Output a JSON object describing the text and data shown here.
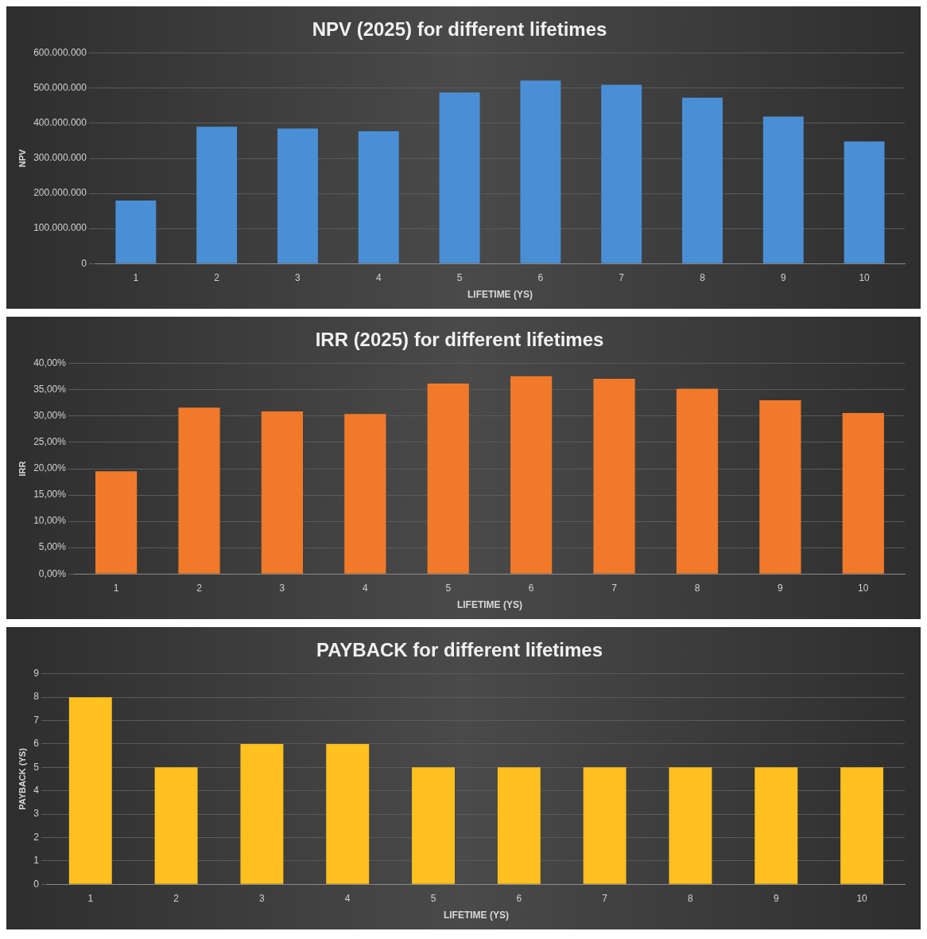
{
  "chart_data": [
    {
      "type": "bar",
      "title": "NPV (2025) for different lifetimes",
      "xlabel": "LIFETIME (YS)",
      "ylabel": "NPV",
      "categories": [
        "1",
        "2",
        "3",
        "4",
        "5",
        "6",
        "7",
        "8",
        "9",
        "10"
      ],
      "series": [
        {
          "color": "#4a8fd6",
          "values": [
            180000000,
            390000000,
            385000000,
            377000000,
            488000000,
            522000000,
            510000000,
            473000000,
            419000000,
            348000000
          ]
        }
      ],
      "ylim": [
        0,
        600000000
      ],
      "yticks": [
        {
          "value": 0,
          "label": "0"
        },
        {
          "value": 100000000,
          "label": "100.000.000"
        },
        {
          "value": 200000000,
          "label": "200.000.000"
        },
        {
          "value": 300000000,
          "label": "300.000.000"
        },
        {
          "value": 400000000,
          "label": "400.000.000"
        },
        {
          "value": 500000000,
          "label": "500.000.000"
        },
        {
          "value": 600000000,
          "label": "600.000.000"
        }
      ],
      "grid": "y"
    },
    {
      "type": "bar",
      "title": "IRR (2025) for different lifetimes",
      "xlabel": "LIFETIME (YS)",
      "ylabel": "IRR",
      "categories": [
        "1",
        "2",
        "3",
        "4",
        "5",
        "6",
        "7",
        "8",
        "9",
        "10"
      ],
      "series": [
        {
          "color": "#f07a2a",
          "values": [
            19.5,
            31.6,
            30.9,
            30.4,
            36.2,
            37.6,
            37.1,
            35.2,
            33.0,
            30.6
          ]
        }
      ],
      "ylim": [
        0,
        40
      ],
      "yticks": [
        {
          "value": 0,
          "label": "0,00%"
        },
        {
          "value": 5,
          "label": "5,00%"
        },
        {
          "value": 10,
          "label": "10,00%"
        },
        {
          "value": 15,
          "label": "15,00%"
        },
        {
          "value": 20,
          "label": "20,00%"
        },
        {
          "value": 25,
          "label": "25,00%"
        },
        {
          "value": 30,
          "label": "30,00%"
        },
        {
          "value": 35,
          "label": "35,00%"
        },
        {
          "value": 40,
          "label": "40,00%"
        }
      ],
      "grid": "y"
    },
    {
      "type": "bar",
      "title": "PAYBACK for different lifetimes",
      "xlabel": "LIFETIME (YS)",
      "ylabel": "PAYBACK (YS)",
      "categories": [
        "1",
        "2",
        "3",
        "4",
        "5",
        "6",
        "7",
        "8",
        "9",
        "10"
      ],
      "series": [
        {
          "color": "#ffc020",
          "values": [
            8,
            5,
            6,
            6,
            5,
            5,
            5,
            5,
            5,
            5
          ]
        }
      ],
      "ylim": [
        0,
        9
      ],
      "yticks": [
        0,
        1,
        2,
        3,
        4,
        5,
        6,
        7,
        8,
        9
      ],
      "grid": "y"
    }
  ]
}
